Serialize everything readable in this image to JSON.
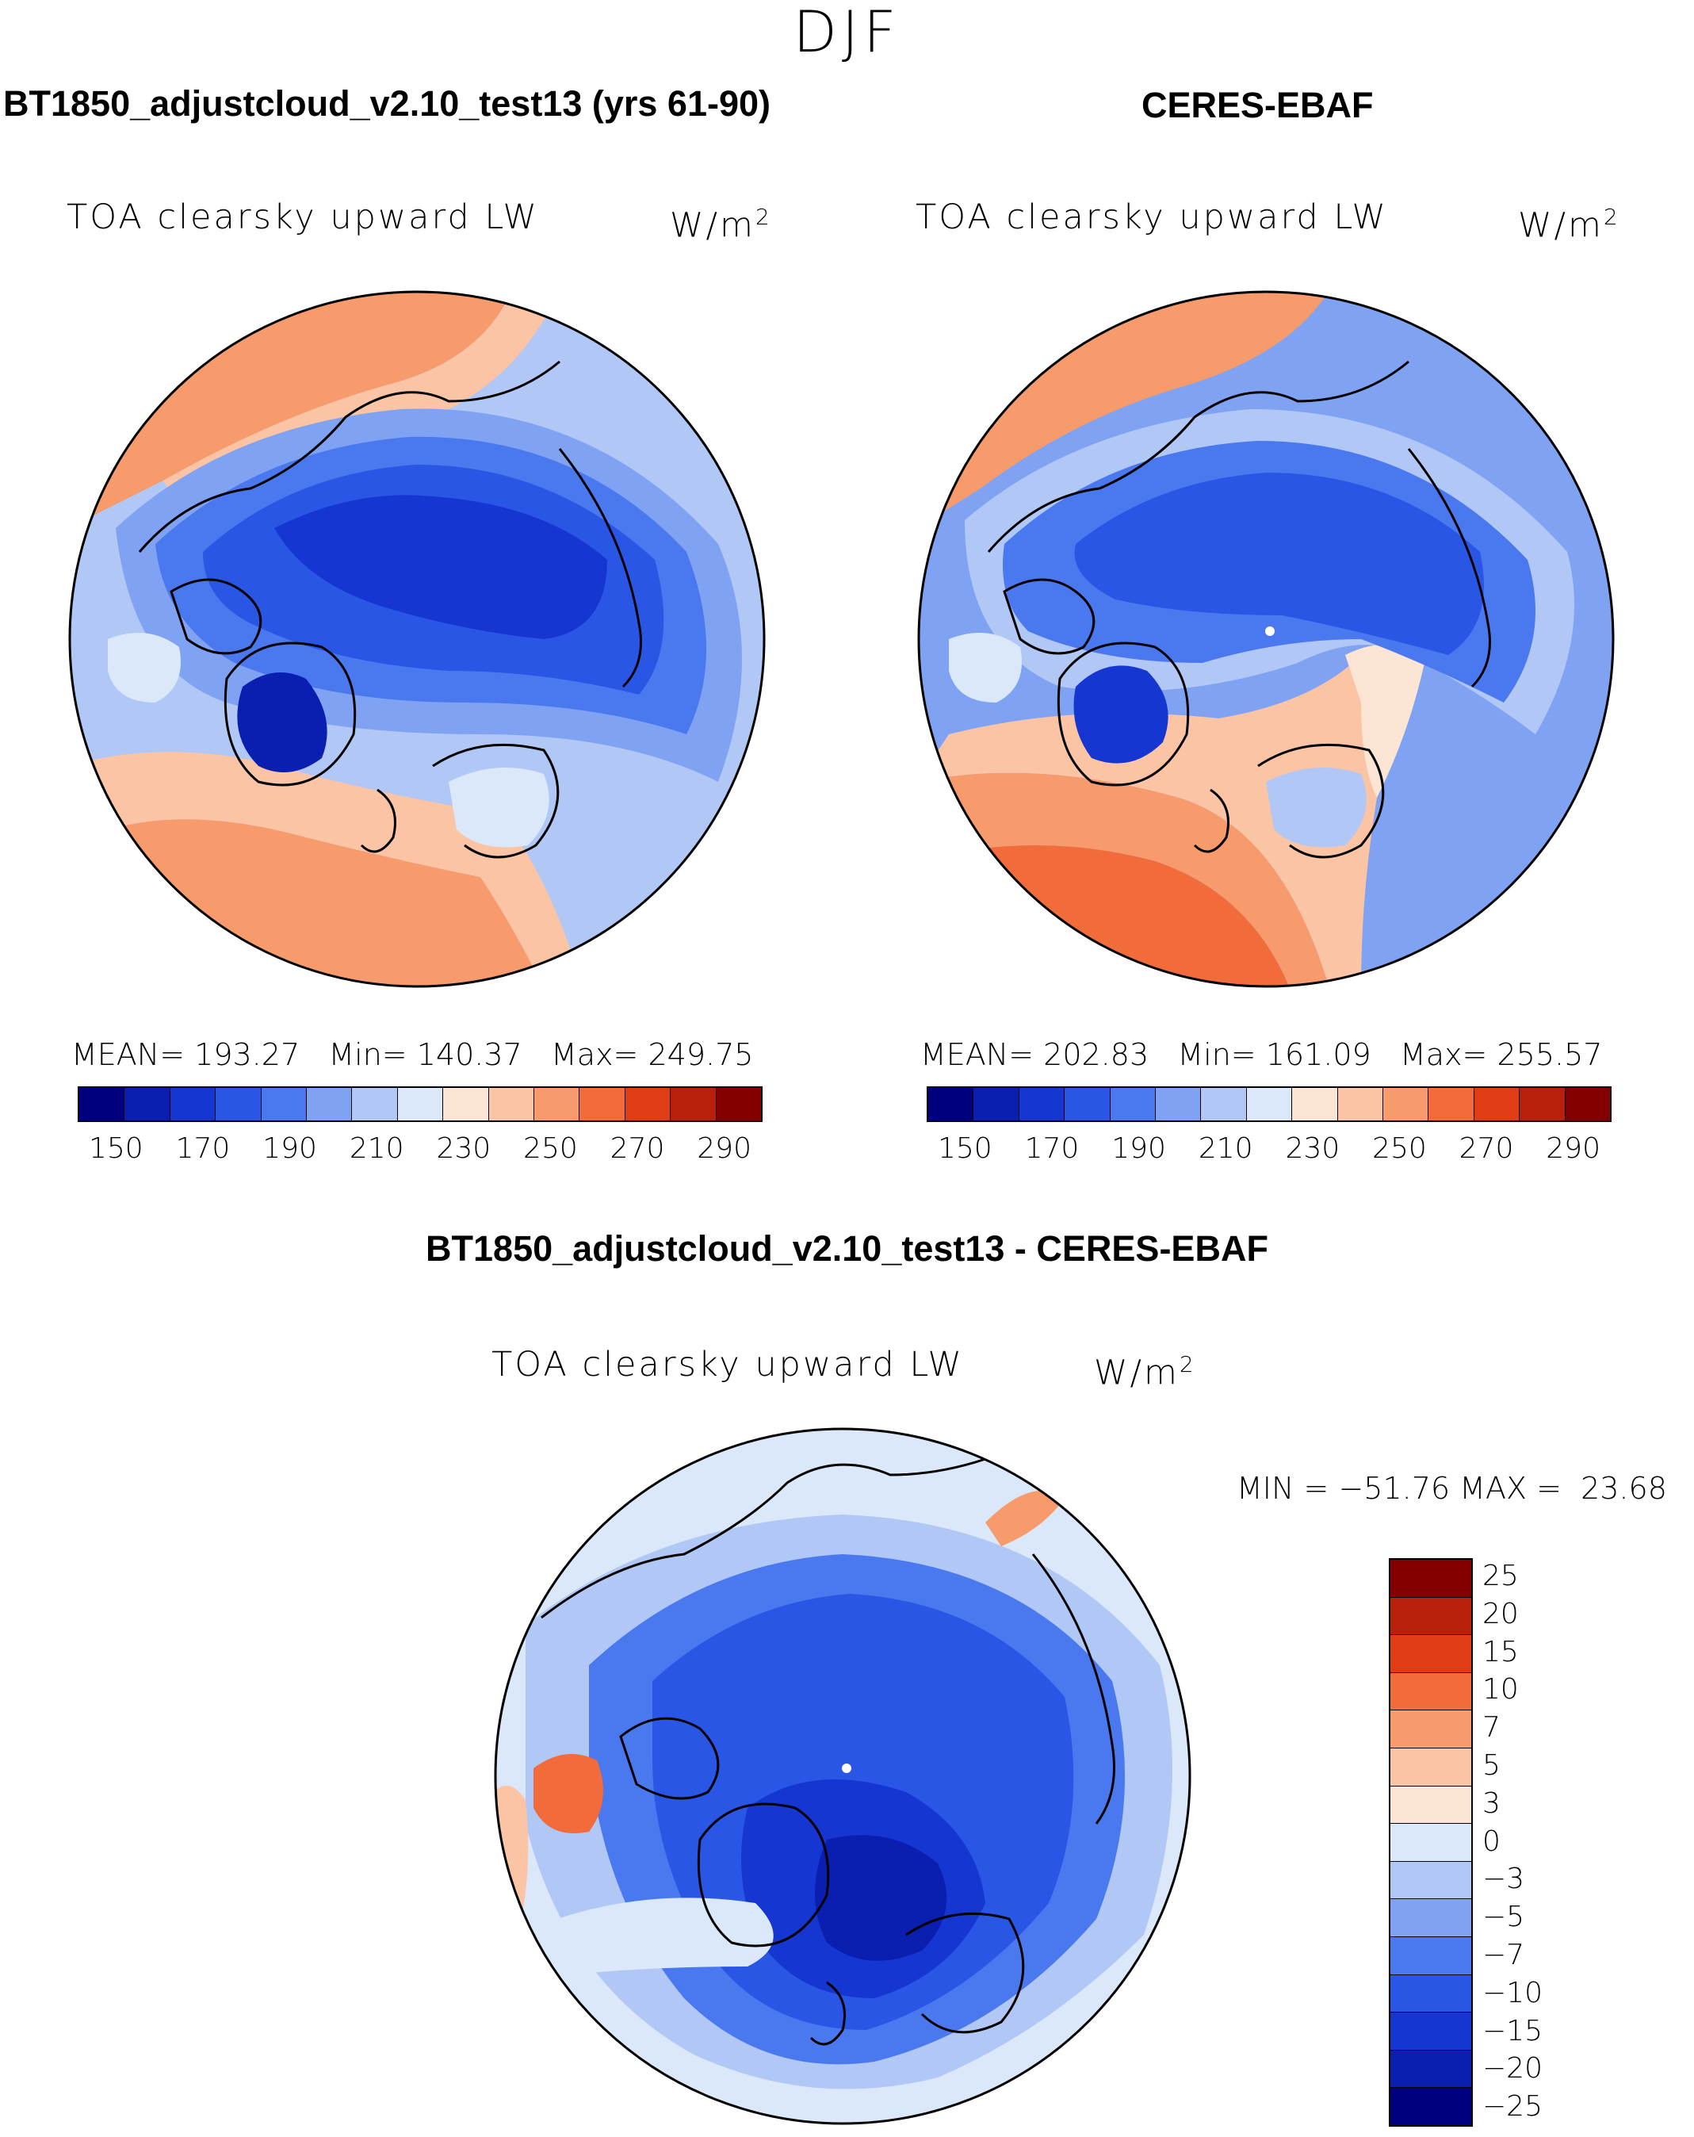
{
  "figure": {
    "season": "DJF"
  },
  "panels": [
    {
      "id": "model",
      "title": "BT1850_adjustcloud_v2.10_test13 (yrs 61-90)",
      "subtitle": "TOA clearsky upward LW",
      "units_base": "W/m",
      "units_sup": "2",
      "stats": {
        "mean_label": "MEAN=",
        "mean": "193.27",
        "min_label": "Min=",
        "min": "140.37",
        "max_label": "Max=",
        "max": "249.75"
      }
    },
    {
      "id": "obs",
      "title": "CERES-EBAF",
      "subtitle": "TOA clearsky upward LW",
      "units_base": "W/m",
      "units_sup": "2",
      "stats": {
        "mean_label": "MEAN=",
        "mean": "202.83",
        "min_label": "Min=",
        "min": "161.09",
        "max_label": "Max=",
        "max": "255.57"
      }
    },
    {
      "id": "diff",
      "title": "BT1850_adjustcloud_v2.10_test13 - CERES-EBAF",
      "subtitle": "TOA clearsky upward LW",
      "units_base": "W/m",
      "units_sup": "2",
      "stats": {
        "min_label": "MIN =",
        "min": "−51.76",
        "max_label": "MAX =",
        "max": "23.68"
      }
    }
  ],
  "colorbar_abs": {
    "colors": [
      "#00007f",
      "#0a1fb0",
      "#1536d0",
      "#2a56e6",
      "#4a78ee",
      "#7fa3f2",
      "#b1c8f6",
      "#dbe8fa",
      "#fde5d6",
      "#fbc4a4",
      "#f79a6c",
      "#f26b3a",
      "#e03d17",
      "#b8200b",
      "#840000"
    ],
    "tick_labels": [
      "150",
      "170",
      "190",
      "210",
      "230",
      "250",
      "270",
      "290"
    ]
  },
  "colorbar_diff": {
    "colors": [
      "#840000",
      "#b8200b",
      "#e03d17",
      "#f26b3a",
      "#f79a6c",
      "#fbc4a4",
      "#fde5d6",
      "#dbe8fa",
      "#b1c8f6",
      "#7fa3f2",
      "#4a78ee",
      "#2a56e6",
      "#1536d0",
      "#0a1fb0",
      "#00007f"
    ],
    "tick_labels": [
      "25",
      "20",
      "15",
      "10",
      "7",
      "5",
      "3",
      "0",
      "−3",
      "−5",
      "−7",
      "−10",
      "−15",
      "−20",
      "−25"
    ]
  },
  "map_colors": {
    "deep": "#0a1fb0",
    "dark": "#1536d0",
    "mid": "#2a56e6",
    "light": "#4a78ee",
    "pale": "#7fa3f2",
    "paler": "#b1c8f6",
    "palest": "#dbe8fa",
    "cream": "#fde5d6",
    "peach": "#fbc4a4",
    "salmon": "#f79a6c",
    "orange": "#f26b3a",
    "coast": "#000000"
  }
}
